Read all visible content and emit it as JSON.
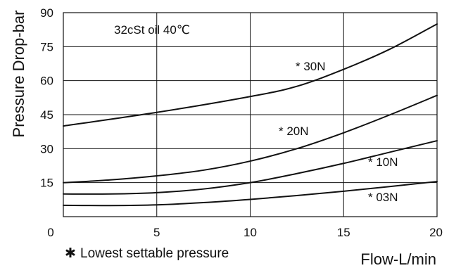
{
  "chart_data": {
    "type": "line",
    "xlabel": "Flow-L/min",
    "ylabel": "Pressure Drop-bar",
    "xlim": [
      0,
      20
    ],
    "ylim": [
      0,
      90
    ],
    "x_ticks": [
      0,
      5,
      10,
      15,
      20
    ],
    "y_ticks": [
      15,
      30,
      45,
      60,
      75,
      90
    ],
    "x_tick_labels": [
      "0",
      "5",
      "10",
      "15",
      "20"
    ],
    "y_tick_labels": [
      "15",
      "30",
      "45",
      "60",
      "75",
      "90"
    ],
    "y_origin_label": "0",
    "grid": true,
    "condition_note": "32cSt oil 40℃",
    "footnote": "Lowest settable pressure",
    "footnote_symbol": "✱",
    "series": [
      {
        "name": "30N",
        "label": "* 30N",
        "x": [
          0,
          5,
          10,
          12.5,
          15,
          17.5,
          20
        ],
        "y": [
          40,
          46,
          53,
          57.5,
          65,
          74,
          85
        ]
      },
      {
        "name": "20N",
        "label": "* 20N",
        "x": [
          0,
          2.5,
          5,
          7.5,
          10,
          12.5,
          15,
          17.5,
          20
        ],
        "y": [
          15,
          16.2,
          18,
          20.5,
          24.5,
          30,
          37,
          45,
          53.5
        ]
      },
      {
        "name": "10N",
        "label": "* 10N",
        "x": [
          0,
          2.5,
          5,
          7.5,
          10,
          12.5,
          15,
          17.5,
          20
        ],
        "y": [
          10,
          10,
          10.6,
          12.2,
          15,
          19,
          23.5,
          28.5,
          33.5
        ]
      },
      {
        "name": "03N",
        "label": "* 03N",
        "x": [
          0,
          2.5,
          5,
          7.5,
          10,
          12.5,
          15,
          17.5,
          20
        ],
        "y": [
          5,
          4.9,
          5.2,
          6.2,
          7.6,
          9.3,
          11.2,
          13.3,
          15.5
        ]
      }
    ]
  }
}
